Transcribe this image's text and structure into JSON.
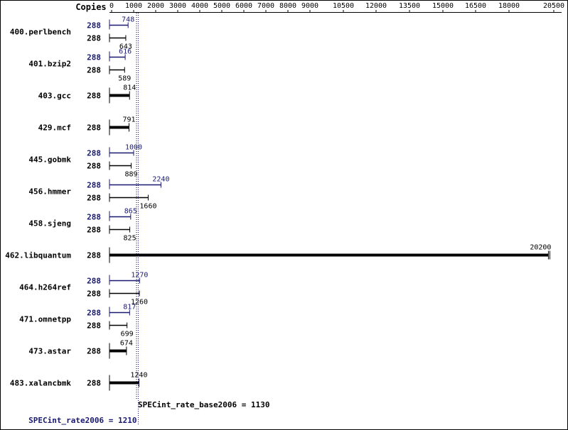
{
  "chart_data": {
    "type": "bar",
    "orientation": "horizontal",
    "copies_header": "Copies",
    "x_ticks": [
      {
        "label": "0",
        "value": 0
      },
      {
        "label": "1000",
        "value": 1000
      },
      {
        "label": "2000",
        "value": 2000
      },
      {
        "label": "3000",
        "value": 3000
      },
      {
        "label": "4000",
        "value": 4000
      },
      {
        "label": "5000",
        "value": 5000
      },
      {
        "label": "6000",
        "value": 6000
      },
      {
        "label": "7000",
        "value": 7000
      },
      {
        "label": "8000",
        "value": 8000
      },
      {
        "label": "9000",
        "value": 9000
      },
      {
        "label": "10500",
        "value": 10500
      },
      {
        "label": "12000",
        "value": 12000
      },
      {
        "label": "13500",
        "value": 13500
      },
      {
        "label": "15000",
        "value": 15000
      },
      {
        "label": "16500",
        "value": 16500
      },
      {
        "label": "18000",
        "value": 18000
      },
      {
        "label": "20500",
        "value": 20500
      }
    ],
    "benchmarks": [
      {
        "name": "400.perlbench",
        "peak": {
          "copies": "288",
          "value": 748,
          "label": "748"
        },
        "base": {
          "copies": "288",
          "value": 643,
          "label": "643"
        }
      },
      {
        "name": "401.bzip2",
        "peak": {
          "copies": "288",
          "value": 616,
          "label": "616"
        },
        "base": {
          "copies": "288",
          "value": 589,
          "label": "589"
        }
      },
      {
        "name": "403.gcc",
        "base": {
          "copies": "288",
          "value": 814,
          "label": "814"
        }
      },
      {
        "name": "429.mcf",
        "base": {
          "copies": "288",
          "value": 791,
          "label": "791"
        }
      },
      {
        "name": "445.gobmk",
        "peak": {
          "copies": "288",
          "value": 1000,
          "label": "1000"
        },
        "base": {
          "copies": "288",
          "value": 889,
          "label": "889"
        }
      },
      {
        "name": "456.hmmer",
        "peak": {
          "copies": "288",
          "value": 2240,
          "label": "2240"
        },
        "base": {
          "copies": "288",
          "value": 1660,
          "label": "1660"
        }
      },
      {
        "name": "458.sjeng",
        "peak": {
          "copies": "288",
          "value": 865,
          "label": "865"
        },
        "base": {
          "copies": "288",
          "value": 825,
          "label": "825"
        }
      },
      {
        "name": "462.libquantum",
        "base": {
          "copies": "288",
          "value": 20200,
          "label": "20200"
        }
      },
      {
        "name": "464.h264ref",
        "peak": {
          "copies": "288",
          "value": 1270,
          "label": "1270"
        },
        "base": {
          "copies": "288",
          "value": 1260,
          "label": "1260"
        }
      },
      {
        "name": "471.omnetpp",
        "peak": {
          "copies": "288",
          "value": 817,
          "label": "817"
        },
        "base": {
          "copies": "288",
          "value": 699,
          "label": "699"
        }
      },
      {
        "name": "473.astar",
        "base": {
          "copies": "288",
          "value": 674,
          "label": "674"
        }
      },
      {
        "name": "483.xalancbmk",
        "base": {
          "copies": "288",
          "value": 1240,
          "label": "1240"
        }
      }
    ],
    "base_summary": {
      "label": "SPECint_rate_base2006 = 1130",
      "value": 1130
    },
    "peak_summary": {
      "label": "SPECint_rate2006 = 1210",
      "value": 1210
    },
    "colors": {
      "base": "#000000",
      "peak": "#191970"
    },
    "grid": false,
    "legend": "none"
  }
}
